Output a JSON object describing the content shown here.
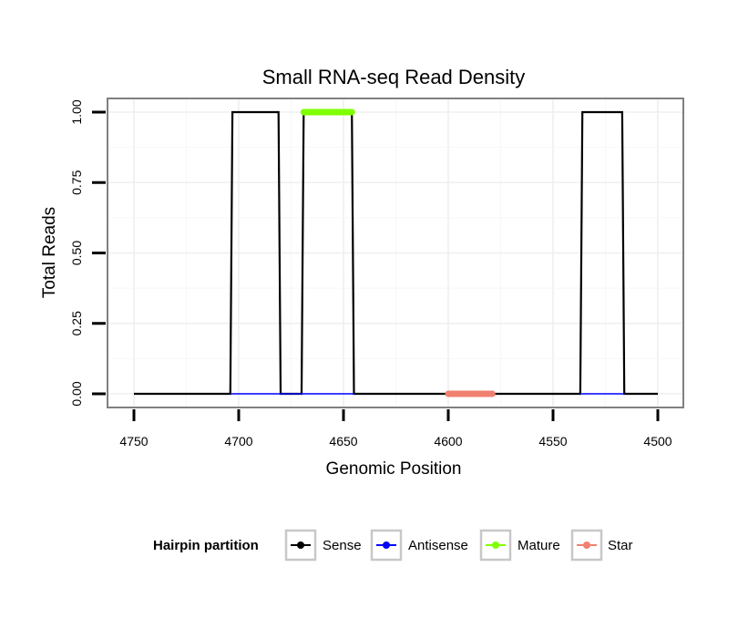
{
  "chart_data": {
    "type": "line",
    "title": "Small RNA-seq Read Density",
    "xlabel": "Genomic Position",
    "ylabel": "Total Reads",
    "xlim": [
      4500,
      4750
    ],
    "x_reversed": true,
    "ylim": [
      0,
      1
    ],
    "grid": true,
    "x_ticks": [
      4750,
      4700,
      4650,
      4600,
      4550,
      4500
    ],
    "x_tick_labels": [
      "4750",
      "4700",
      "4650",
      "4600",
      "4550",
      "4500"
    ],
    "y_ticks": [
      0,
      0.25,
      0.5,
      0.75,
      1
    ],
    "y_tick_labels": [
      "0.00",
      "0.25",
      "0.50",
      "0.75",
      "1.00"
    ],
    "legend": {
      "title": "Hairpin partition",
      "position": "bottom",
      "entries": [
        {
          "label": "Sense",
          "color": "#000000"
        },
        {
          "label": "Antisense",
          "color": "#0000ff"
        },
        {
          "label": "Mature",
          "color": "#7fff00"
        },
        {
          "label": "Star",
          "color": "#f08070"
        }
      ]
    },
    "series": [
      {
        "name": "Sense",
        "color": "#000000",
        "x": [
          4750,
          4704,
          4703,
          4681,
          4680,
          4670,
          4669,
          4646,
          4645,
          4537,
          4536,
          4517,
          4516,
          4500
        ],
        "y": [
          0,
          0,
          1,
          1,
          0,
          0,
          1,
          1,
          0,
          0,
          1,
          1,
          0,
          0
        ]
      },
      {
        "name": "Antisense",
        "color": "#0000ff",
        "x": [
          4704,
          4645,
          4537,
          4516
        ],
        "y": [
          0,
          0,
          0,
          0
        ],
        "segments": [
          [
            4704,
            4645
          ],
          [
            4537,
            4516
          ]
        ]
      },
      {
        "name": "Mature",
        "color": "#7fff00",
        "x": [
          4669,
          4646
        ],
        "y": [
          1,
          1
        ]
      },
      {
        "name": "Star",
        "color": "#f08070",
        "x": [
          4600,
          4579
        ],
        "y": [
          0,
          0
        ]
      }
    ]
  }
}
